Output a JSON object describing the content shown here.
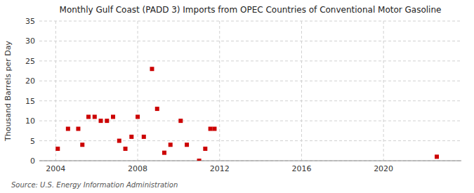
{
  "chart_data": {
    "type": "scatter",
    "title": "Monthly Gulf Coast (PADD 3) Imports from OPEC Countries of Conventional Motor Gasoline",
    "y_label": "Thousand Barrels per Day",
    "annotations": [
      "Source: U.S. Energy Information Administration"
    ],
    "color": "#cc0000",
    "marker": "square",
    "grid": true,
    "xlim": [
      2003.2,
      2023.8
    ],
    "ylim": [
      0,
      35
    ],
    "xticks": [
      2004,
      2008,
      2012,
      2016,
      2020
    ],
    "yticks": [
      0,
      5,
      10,
      15,
      20,
      25,
      30,
      35
    ],
    "x": [
      2004.1,
      2004.6,
      2005.1,
      2005.3,
      2005.6,
      2005.9,
      2006.2,
      2006.5,
      2006.8,
      2007.1,
      2007.4,
      2007.7,
      2008.0,
      2008.3,
      2008.7,
      2008.95,
      2009.3,
      2009.6,
      2010.1,
      2010.4,
      2011.0,
      2011.3,
      2011.55,
      2011.75,
      2022.6
    ],
    "values": [
      3,
      8,
      8,
      4,
      11,
      11,
      10,
      10,
      11,
      5,
      3,
      6,
      11,
      6,
      23,
      13,
      2,
      4,
      10,
      4,
      0,
      3,
      8,
      8,
      1
    ]
  }
}
